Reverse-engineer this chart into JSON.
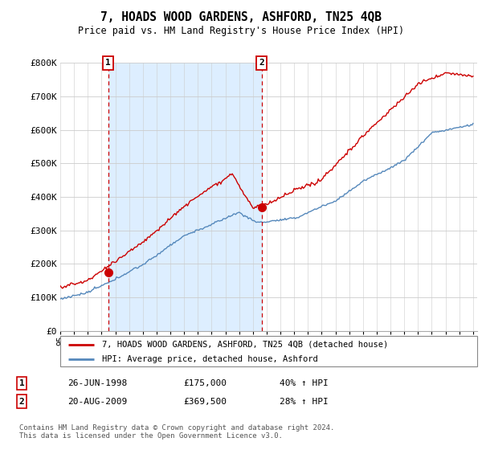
{
  "title": "7, HOADS WOOD GARDENS, ASHFORD, TN25 4QB",
  "subtitle": "Price paid vs. HM Land Registry's House Price Index (HPI)",
  "legend_line1": "7, HOADS WOOD GARDENS, ASHFORD, TN25 4QB (detached house)",
  "legend_line2": "HPI: Average price, detached house, Ashford",
  "footnote": "Contains HM Land Registry data © Crown copyright and database right 2024.\nThis data is licensed under the Open Government Licence v3.0.",
  "sale1_date": "26-JUN-1998",
  "sale1_price": 175000,
  "sale1_hpi": "40% ↑ HPI",
  "sale2_date": "20-AUG-2009",
  "sale2_price": 369500,
  "sale2_hpi": "28% ↑ HPI",
  "sale1_x": 1998.48,
  "sale2_x": 2009.64,
  "ylim": [
    0,
    800000
  ],
  "yticks": [
    0,
    100000,
    200000,
    300000,
    400000,
    500000,
    600000,
    700000,
    800000
  ],
  "ytick_labels": [
    "£0",
    "£100K",
    "£200K",
    "£300K",
    "£400K",
    "£500K",
    "£600K",
    "£700K",
    "£800K"
  ],
  "red_color": "#cc0000",
  "blue_color": "#5588bb",
  "shade_color": "#ddeeff",
  "marker_label1": "1",
  "marker_label2": "2",
  "xlim_left": 1995.0,
  "xlim_right": 2025.3
}
